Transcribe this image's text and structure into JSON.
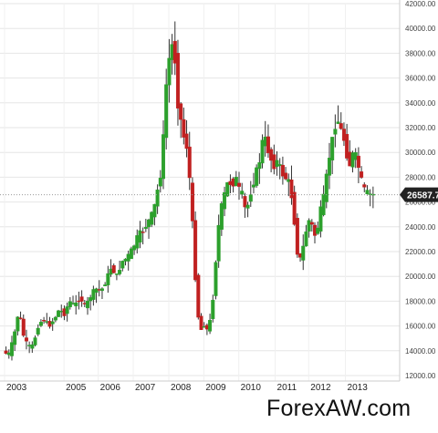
{
  "chart_data": {
    "type": "candlestick",
    "title": "",
    "xlabel": "",
    "ylabel": "",
    "ylim": [
      12000,
      42000
    ],
    "xlim": [
      2003.0,
      2014.25
    ],
    "y_ticks": [
      12000,
      14000,
      16000,
      18000,
      20000,
      22000,
      24000,
      26000,
      28000,
      30000,
      32000,
      34000,
      36000,
      38000,
      40000,
      42000
    ],
    "y_tick_labels": [
      "12000.00",
      "14000.00",
      "16000.00",
      "18000.00",
      "20000.00",
      "22000.00",
      "24000.00",
      "26000.00",
      "28000.00",
      "30000.00",
      "32000.00",
      "34000.00",
      "36000.00",
      "38000.00",
      "40000.00",
      "42000.00"
    ],
    "x_ticks": [
      {
        "label": "2003",
        "x": 2003.0
      },
      {
        "label": "2005",
        "x": 2004.7
      },
      {
        "label": "2006",
        "x": 2005.68
      },
      {
        "label": "2007",
        "x": 2006.68
      },
      {
        "label": "2008",
        "x": 2007.7
      },
      {
        "label": "2009",
        "x": 2008.7
      },
      {
        "label": "2010",
        "x": 2009.7
      },
      {
        "label": "2011",
        "x": 2010.74
      },
      {
        "label": "2012",
        "x": 2011.7
      },
      {
        "label": "2013",
        "x": 2012.75
      }
    ],
    "grid": true,
    "current_price": 26587.7,
    "current_price_label": "26587.7",
    "up_color": "#2ca02c",
    "down_color": "#c02020",
    "price_tag_color": "#222222",
    "path": [
      [
        2003.0,
        14000
      ],
      [
        2003.15,
        13600
      ],
      [
        2003.3,
        15000
      ],
      [
        2003.45,
        17300
      ],
      [
        2003.6,
        15000
      ],
      [
        2003.72,
        14300
      ],
      [
        2003.85,
        14400
      ],
      [
        2004.0,
        16000
      ],
      [
        2004.15,
        16600
      ],
      [
        2004.3,
        16000
      ],
      [
        2004.45,
        16500
      ],
      [
        2004.6,
        17300
      ],
      [
        2004.75,
        17000
      ],
      [
        2004.9,
        18000
      ],
      [
        2005.05,
        17600
      ],
      [
        2005.2,
        18400
      ],
      [
        2005.35,
        17500
      ],
      [
        2005.5,
        18400
      ],
      [
        2005.65,
        19000
      ],
      [
        2005.8,
        18800
      ],
      [
        2005.95,
        19700
      ],
      [
        2006.1,
        20800
      ],
      [
        2006.25,
        20000
      ],
      [
        2006.4,
        21200
      ],
      [
        2006.55,
        21500
      ],
      [
        2006.7,
        22200
      ],
      [
        2006.85,
        23200
      ],
      [
        2007.0,
        23700
      ],
      [
        2007.15,
        24400
      ],
      [
        2007.3,
        25200
      ],
      [
        2007.42,
        27000
      ],
      [
        2007.5,
        28200
      ],
      [
        2007.58,
        31000
      ],
      [
        2007.65,
        35000
      ],
      [
        2007.72,
        37000
      ],
      [
        2007.8,
        38500
      ],
      [
        2007.87,
        38800
      ],
      [
        2007.95,
        36500
      ],
      [
        2008.02,
        33000
      ],
      [
        2008.1,
        32500
      ],
      [
        2008.17,
        31200
      ],
      [
        2008.25,
        30500
      ],
      [
        2008.32,
        28500
      ],
      [
        2008.4,
        25000
      ],
      [
        2008.48,
        21000
      ],
      [
        2008.55,
        17500
      ],
      [
        2008.62,
        16000
      ],
      [
        2008.7,
        15500
      ],
      [
        2008.78,
        16500
      ],
      [
        2008.86,
        15300
      ],
      [
        2008.95,
        17000
      ],
      [
        2009.03,
        19000
      ],
      [
        2009.1,
        22000
      ],
      [
        2009.18,
        24500
      ],
      [
        2009.26,
        25800
      ],
      [
        2009.35,
        26800
      ],
      [
        2009.45,
        27800
      ],
      [
        2009.55,
        27300
      ],
      [
        2009.65,
        28000
      ],
      [
        2009.75,
        27000
      ],
      [
        2009.85,
        26500
      ],
      [
        2009.95,
        25000
      ],
      [
        2010.05,
        26500
      ],
      [
        2010.15,
        27500
      ],
      [
        2010.25,
        28500
      ],
      [
        2010.35,
        29500
      ],
      [
        2010.45,
        31500
      ],
      [
        2010.55,
        30500
      ],
      [
        2010.65,
        29500
      ],
      [
        2010.75,
        29000
      ],
      [
        2010.85,
        29300
      ],
      [
        2010.95,
        28500
      ],
      [
        2011.05,
        28000
      ],
      [
        2011.15,
        27800
      ],
      [
        2011.25,
        26500
      ],
      [
        2011.35,
        24000
      ],
      [
        2011.45,
        21000
      ],
      [
        2011.55,
        21800
      ],
      [
        2011.65,
        23500
      ],
      [
        2011.75,
        24500
      ],
      [
        2011.85,
        24000
      ],
      [
        2011.95,
        23000
      ],
      [
        2012.05,
        25000
      ],
      [
        2012.15,
        26000
      ],
      [
        2012.25,
        28000
      ],
      [
        2012.35,
        30000
      ],
      [
        2012.45,
        31500
      ],
      [
        2012.55,
        33000
      ],
      [
        2012.62,
        32000
      ],
      [
        2012.72,
        31500
      ],
      [
        2012.82,
        30000
      ],
      [
        2012.92,
        29000
      ],
      [
        2013.02,
        30000
      ],
      [
        2013.12,
        29500
      ],
      [
        2013.22,
        28000
      ],
      [
        2013.32,
        27000
      ],
      [
        2013.42,
        26700
      ],
      [
        2013.5,
        26600
      ]
    ]
  },
  "watermark": "ForexAW.com"
}
